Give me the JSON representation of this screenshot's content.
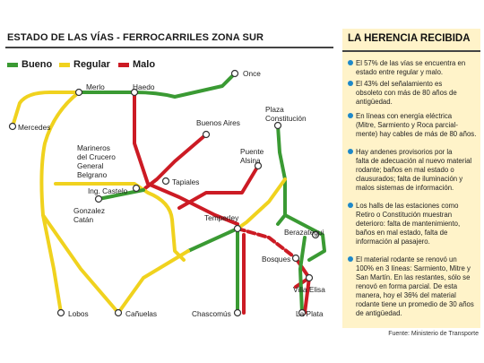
{
  "header": {
    "title": "ESTADO DE LAS VÍAS - FERROCARRILES ZONA SUR"
  },
  "legend": [
    {
      "label": "Bueno",
      "color": "#3a9a33"
    },
    {
      "label": "Regular",
      "color": "#f0d21e"
    },
    {
      "label": "Malo",
      "color": "#cc1b24"
    }
  ],
  "stations": {
    "once": "Once",
    "merlo": "Merlo",
    "haedo": "Haedo",
    "mercedes": "Mercedes",
    "buenos_aires": "Buenos Aires",
    "plaza_constitucion": [
      "Plaza",
      "Constitución"
    ],
    "marinos": [
      "Marineros",
      "del Crucero",
      "General",
      "Belgrano"
    ],
    "puente_alsina": [
      "Puente",
      "Alsina"
    ],
    "tapiales": "Tapiales",
    "ing_castelo": "Ing. Castelo",
    "gonzalez_catan": [
      "Gonzalez",
      "Catán"
    ],
    "temperley": "Temperley",
    "berazategui": "Berazategui",
    "bosques": "Bosques",
    "villa_elisa": "Villa Elisa",
    "lobos": "Lobos",
    "canuelas": "Cañuelas",
    "chascomus": "Chascomús",
    "la_plata": "La Plata"
  },
  "sidebar": {
    "title": "LA HERENCIA RECIBIDA",
    "items": [
      [
        "El 57% de las vías se encuentra en",
        "estado entre regular y malo."
      ],
      [
        "El 43% del señalamiento es",
        "obsoleto con más de 80 años de",
        "antigüedad."
      ],
      [
        "En líneas con energía eléctrica",
        "(Mitre, Sarmiento y Roca parcial-",
        "mente) hay cables de más de 80 años."
      ],
      [
        "Hay andenes provisorios por la",
        "falta de adecuación al nuevo material",
        "rodante; baños en mal estado o",
        "clausurados; falta de iluminación y",
        "malos sistemas de información."
      ],
      [
        "Los halls de las estaciones como",
        "Retiro o Constitución muestran",
        "deterioro: falta de mantenimiento,",
        "baños en mal estado, falta de",
        "información al pasajero."
      ],
      [
        "El material rodante se renovó un",
        "100% en 3 líneas: Sarmiento, Mitre y",
        "San Martín. En las restantes, sólo se",
        "renovó en forma parcial. De esta",
        "manera, hoy el 36% del material",
        "rodante tiene un promedio de 30 años",
        "de antigüedad."
      ]
    ]
  },
  "source": "Fuente: Ministerio de Transporte"
}
